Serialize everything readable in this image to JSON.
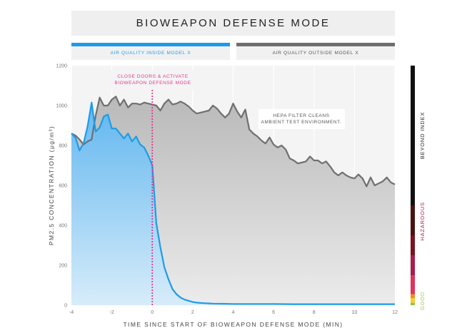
{
  "chart_data": {
    "type": "area",
    "title": "BIOWEAPON DEFENSE MODE",
    "xlabel": "TIME SINCE START OF BIOWEAPON DEFENSE MODE (MIN)",
    "ylabel": "PM2.5 CONCENTRATION (μg/m³)",
    "xlim": [
      -4,
      12
    ],
    "ylim": [
      0,
      1200
    ],
    "xticks": [
      -4,
      -2,
      0,
      2,
      4,
      6,
      8,
      10,
      12
    ],
    "yticks": [
      0,
      200,
      400,
      600,
      800,
      1000,
      1200
    ],
    "grid": "vertical",
    "series": [
      {
        "name": "AIR QUALITY OUTSIDE MODEL X",
        "color": "#6f6f6f",
        "x": [
          -4,
          -3.8,
          -3.6,
          -3.4,
          -3.2,
          -3.0,
          -2.8,
          -2.6,
          -2.4,
          -2.2,
          -2.0,
          -1.8,
          -1.6,
          -1.4,
          -1.2,
          -1.0,
          -0.8,
          -0.6,
          -0.4,
          -0.2,
          0.0,
          0.2,
          0.4,
          0.6,
          0.8,
          1.0,
          1.2,
          1.4,
          1.6,
          1.8,
          2.0,
          2.2,
          2.4,
          2.6,
          2.8,
          3.0,
          3.2,
          3.4,
          3.6,
          3.8,
          4.0,
          4.2,
          4.4,
          4.6,
          4.8,
          5.0,
          5.2,
          5.4,
          5.6,
          5.8,
          6.0,
          6.2,
          6.4,
          6.6,
          6.8,
          7.0,
          7.2,
          7.4,
          7.6,
          7.8,
          8.0,
          8.2,
          8.4,
          8.6,
          8.8,
          9.0,
          9.2,
          9.4,
          9.6,
          9.8,
          10.0,
          10.2,
          10.4,
          10.6,
          10.8,
          11.0,
          11.2,
          11.4,
          11.6,
          11.8,
          12.0
        ],
        "values": [
          860,
          850,
          830,
          805,
          820,
          830,
          950,
          1040,
          1000,
          1000,
          1030,
          1045,
          1000,
          1030,
          990,
          1010,
          1010,
          1005,
          1015,
          1010,
          1005,
          1000,
          975,
          1010,
          1030,
          1005,
          1010,
          1020,
          1010,
          995,
          975,
          960,
          965,
          970,
          975,
          1000,
          985,
          960,
          940,
          960,
          1010,
          970,
          940,
          980,
          880,
          860,
          845,
          825,
          810,
          840,
          805,
          790,
          800,
          780,
          735,
          725,
          710,
          715,
          720,
          745,
          725,
          725,
          710,
          720,
          695,
          665,
          650,
          665,
          650,
          640,
          635,
          655,
          635,
          595,
          640,
          600,
          610,
          620,
          640,
          615,
          605
        ]
      },
      {
        "name": "AIR QUALITY INSIDE MODEL X",
        "color": "#1e9be8",
        "x": [
          -4,
          -3.8,
          -3.6,
          -3.4,
          -3.2,
          -3.0,
          -2.8,
          -2.6,
          -2.4,
          -2.2,
          -2.0,
          -1.8,
          -1.6,
          -1.4,
          -1.2,
          -1.0,
          -0.8,
          -0.6,
          -0.4,
          -0.2,
          0.0,
          0.2,
          0.4,
          0.6,
          0.8,
          1.0,
          1.2,
          1.4,
          1.6,
          1.8,
          2.0,
          2.2,
          2.4,
          2.6,
          2.8,
          3.0,
          3.5,
          4.0,
          5.0,
          6.0,
          7.0,
          8.0,
          9.0,
          10.0,
          11.0,
          12.0
        ],
        "values": [
          860,
          840,
          775,
          810,
          895,
          1015,
          870,
          890,
          945,
          955,
          885,
          885,
          860,
          835,
          860,
          820,
          845,
          805,
          790,
          750,
          700,
          410,
          290,
          190,
          130,
          80,
          55,
          38,
          28,
          22,
          16,
          13,
          11,
          10,
          9,
          8,
          7,
          6,
          6,
          6,
          5,
          5,
          5,
          5,
          5,
          5
        ]
      }
    ],
    "annotations": [
      {
        "text": [
          "CLOSE DOORS & ACTIVATE",
          "BIOWEAPON DEFENSE MODE"
        ],
        "x": 0,
        "color": "#e0378f"
      },
      {
        "text": [
          "HEPA FILTER CLEANS",
          "AMBIENT TEST ENVIRONMENT."
        ],
        "x": 7.5,
        "y": 940,
        "color": "#555555"
      }
    ],
    "scale": {
      "labels": {
        "beyond": "BEYOND INDEX",
        "hazardous": "HAZARDOUS",
        "good": "GOOD"
      },
      "bands": [
        {
          "from": 0,
          "to": 12,
          "color": "#8bc34a"
        },
        {
          "from": 12,
          "to": 35,
          "color": "#f3d12a"
        },
        {
          "from": 35,
          "to": 55,
          "color": "#f58b1f"
        },
        {
          "from": 55,
          "to": 150,
          "color": "#e0345a"
        },
        {
          "from": 150,
          "to": 250,
          "color": "#a71d4d"
        },
        {
          "from": 250,
          "to": 350,
          "color": "#7a1420"
        },
        {
          "from": 350,
          "to": 500,
          "color": "#4a1212"
        },
        {
          "from": 500,
          "to": 1200,
          "color": "#111111"
        }
      ],
      "hazardous_color": "#a71d4d",
      "good_color": "#9cc94a"
    }
  }
}
